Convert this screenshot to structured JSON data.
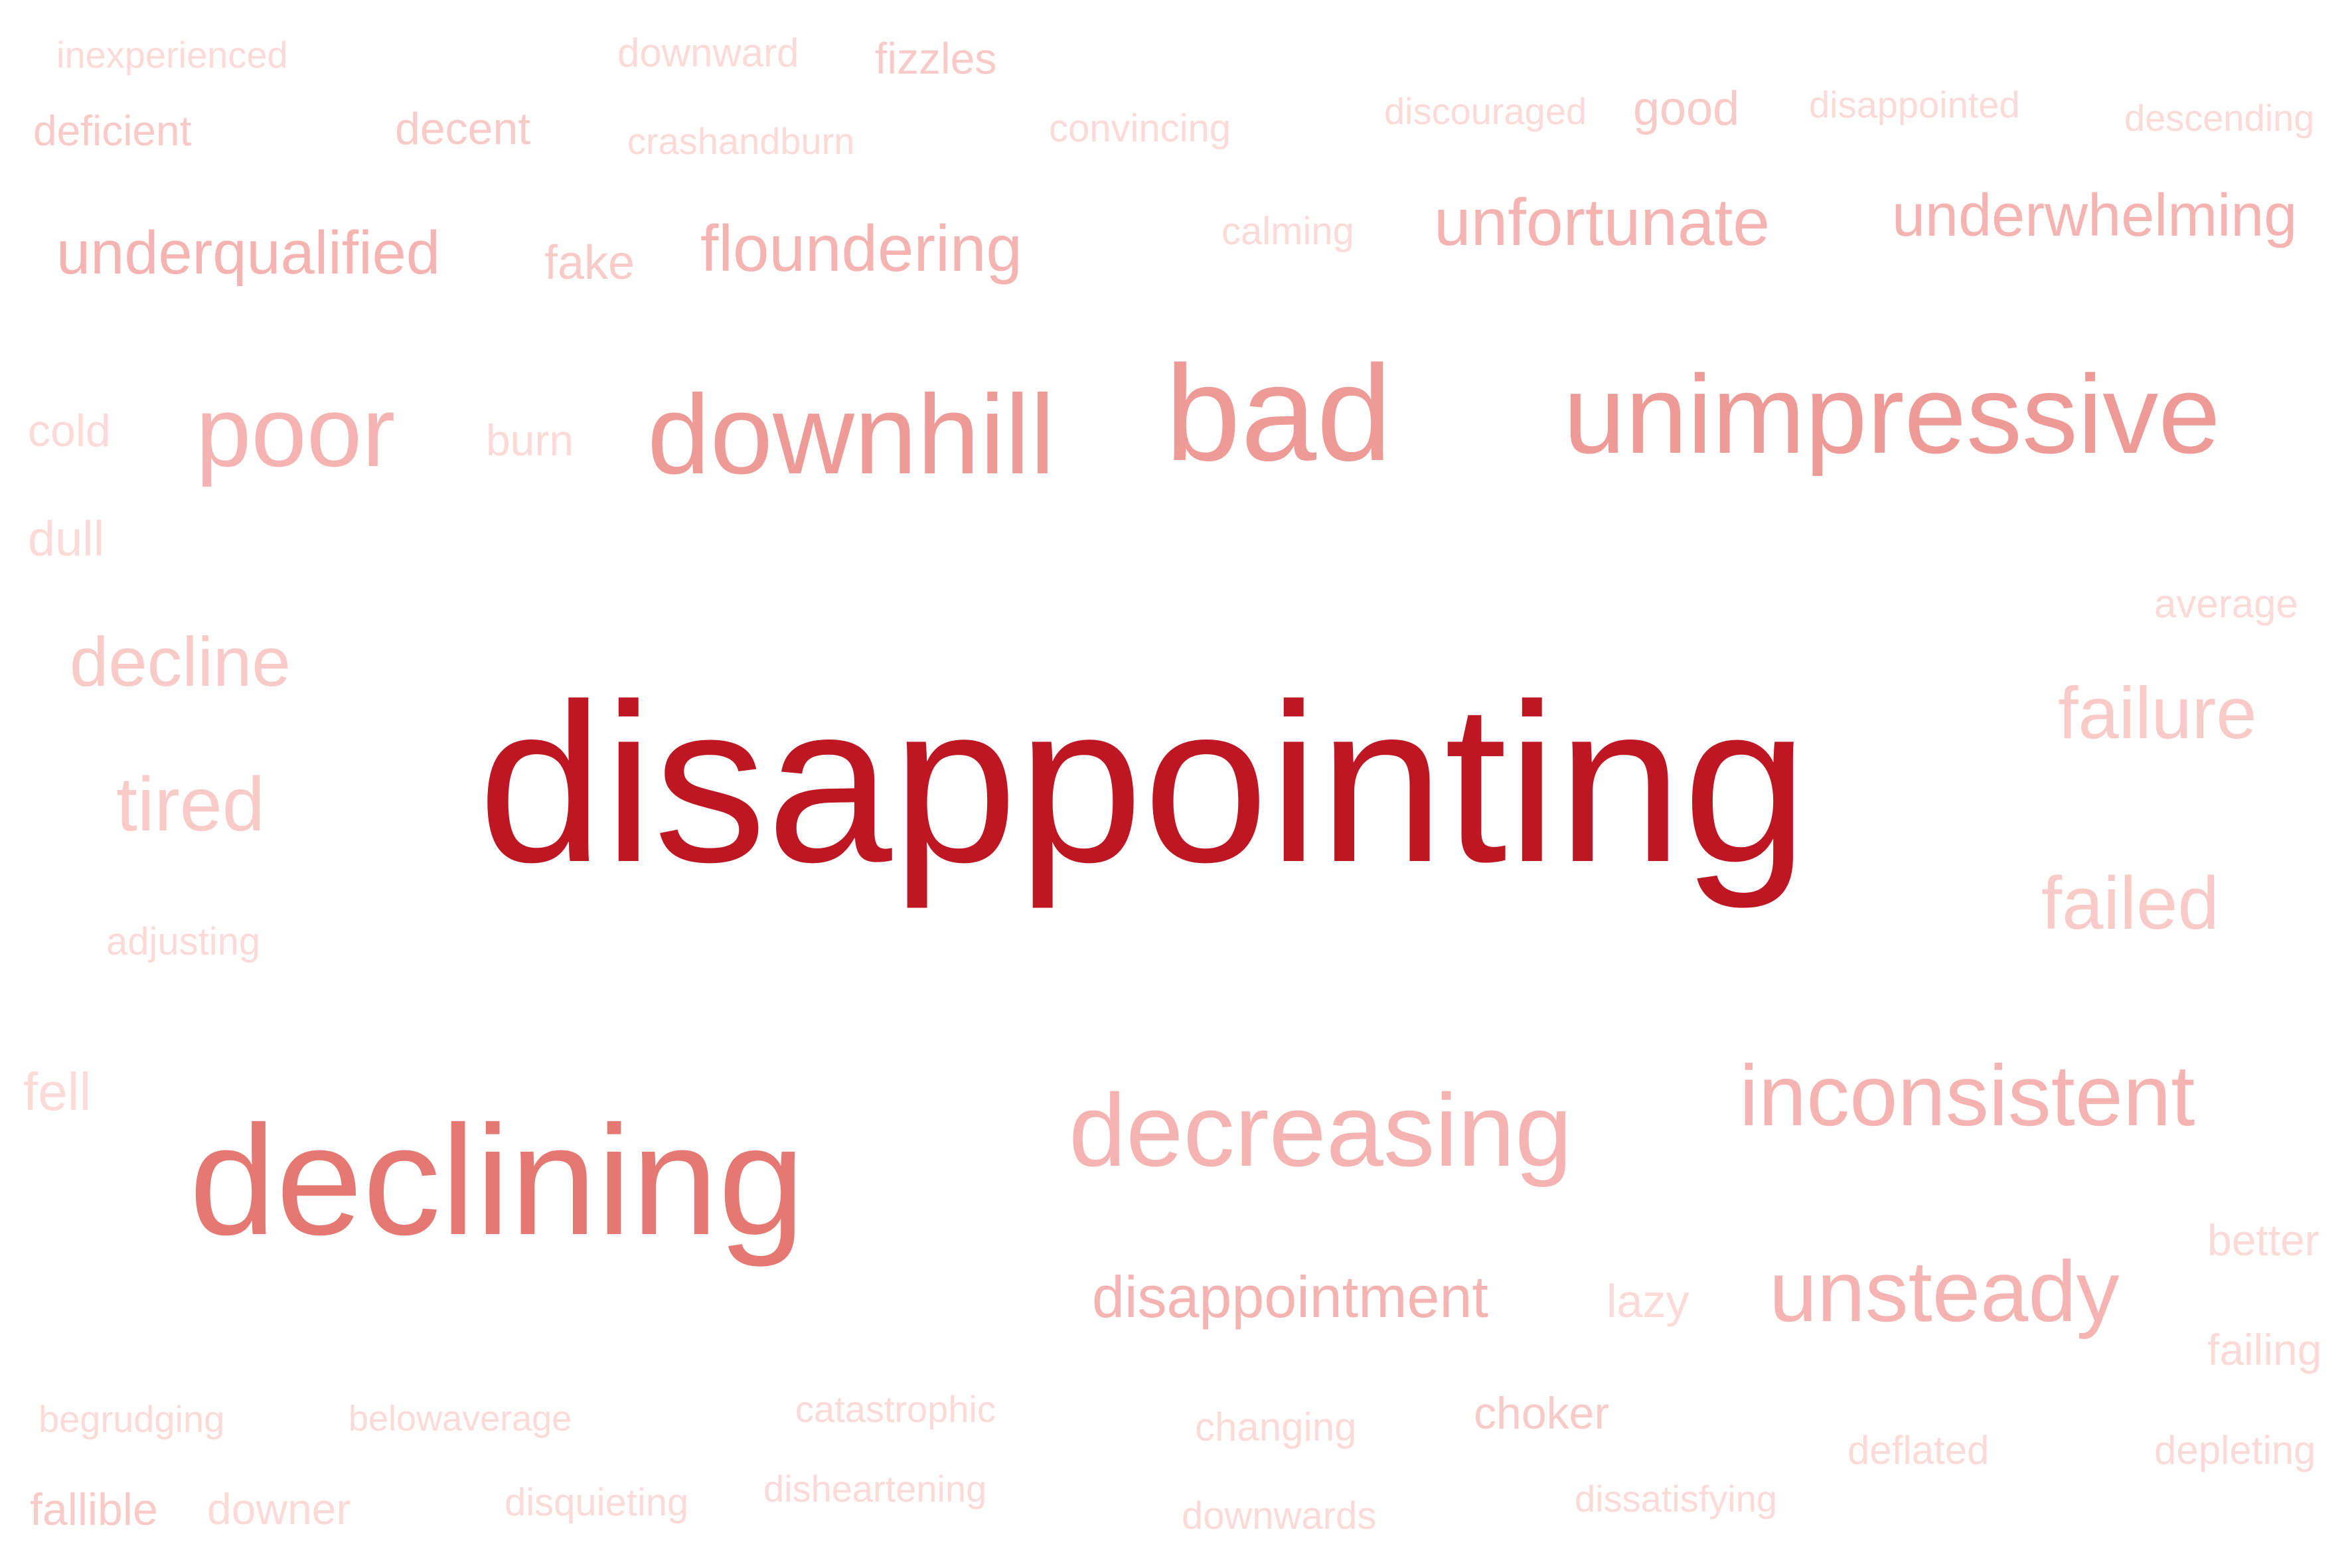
{
  "palette": {
    "dark": "#BE1622",
    "strong": "#E57873",
    "mid": "#EE9A96",
    "light": "#F5B4B1",
    "lighter": "#F9CBC8",
    "faint": "#FCDAD8"
  },
  "words": [
    {
      "text": "disappointing",
      "tone": "dark"
    },
    {
      "text": "declining",
      "tone": "strong"
    },
    {
      "text": "unimpressive",
      "tone": "mid"
    },
    {
      "text": "bad",
      "tone": "mid"
    },
    {
      "text": "downhill",
      "tone": "mid"
    },
    {
      "text": "poor",
      "tone": "light"
    },
    {
      "text": "decreasing",
      "tone": "light"
    },
    {
      "text": "inconsistent",
      "tone": "light"
    },
    {
      "text": "unsteady",
      "tone": "light"
    },
    {
      "text": "disappointment",
      "tone": "light"
    },
    {
      "text": "unfortunate",
      "tone": "light"
    },
    {
      "text": "underwhelming",
      "tone": "light"
    },
    {
      "text": "floundering",
      "tone": "light"
    },
    {
      "text": "underqualified",
      "tone": "light"
    },
    {
      "text": "failure",
      "tone": "lighter"
    },
    {
      "text": "failed",
      "tone": "lighter"
    },
    {
      "text": "tired",
      "tone": "lighter"
    },
    {
      "text": "decline",
      "tone": "lighter"
    },
    {
      "text": "good",
      "tone": "lighter"
    },
    {
      "text": "choker",
      "tone": "lighter"
    },
    {
      "text": "fake",
      "tone": "lighter"
    },
    {
      "text": "decent",
      "tone": "lighter"
    },
    {
      "text": "deficient",
      "tone": "lighter"
    },
    {
      "text": "fizzles",
      "tone": "lighter"
    },
    {
      "text": "downward",
      "tone": "faint"
    },
    {
      "text": "inexperienced",
      "tone": "faint"
    },
    {
      "text": "crashandburn",
      "tone": "faint"
    },
    {
      "text": "convincing",
      "tone": "faint"
    },
    {
      "text": "discouraged",
      "tone": "faint"
    },
    {
      "text": "disappointed",
      "tone": "faint"
    },
    {
      "text": "descending",
      "tone": "faint"
    },
    {
      "text": "calming",
      "tone": "faint"
    },
    {
      "text": "cold",
      "tone": "faint"
    },
    {
      "text": "burn",
      "tone": "faint"
    },
    {
      "text": "dull",
      "tone": "faint"
    },
    {
      "text": "average",
      "tone": "faint"
    },
    {
      "text": "adjusting",
      "tone": "faint"
    },
    {
      "text": "fell",
      "tone": "faint"
    },
    {
      "text": "better",
      "tone": "faint"
    },
    {
      "text": "lazy",
      "tone": "faint"
    },
    {
      "text": "failing",
      "tone": "faint"
    },
    {
      "text": "begrudging",
      "tone": "faint"
    },
    {
      "text": "belowaverage",
      "tone": "faint"
    },
    {
      "text": "catastrophic",
      "tone": "faint"
    },
    {
      "text": "changing",
      "tone": "faint"
    },
    {
      "text": "deflated",
      "tone": "faint"
    },
    {
      "text": "depleting",
      "tone": "faint"
    },
    {
      "text": "fallible",
      "tone": "lighter"
    },
    {
      "text": "downer",
      "tone": "faint"
    },
    {
      "text": "disquieting",
      "tone": "faint"
    },
    {
      "text": "disheartening",
      "tone": "faint"
    },
    {
      "text": "downwards",
      "tone": "faint"
    },
    {
      "text": "dissatisfying",
      "tone": "faint"
    }
  ]
}
